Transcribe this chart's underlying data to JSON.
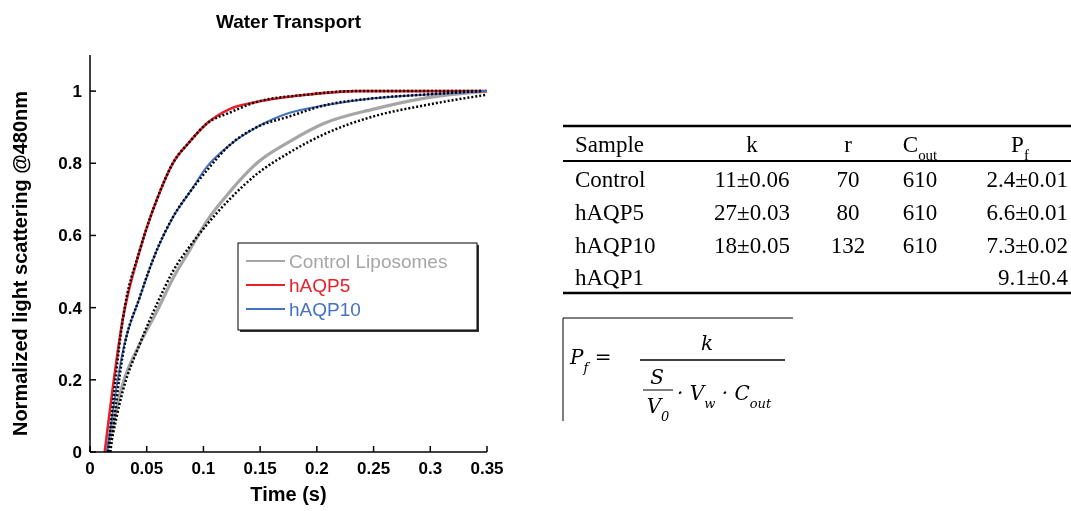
{
  "chart_data": [
    {
      "type": "line",
      "title": "Water Transport",
      "xlabel": "Time (s)",
      "ylabel": "Normalized light scattering @480nm",
      "xlim": [
        0,
        0.35
      ],
      "xticks": [
        0,
        0.05,
        0.1,
        0.15,
        0.2,
        0.25,
        0.3,
        0.35
      ],
      "ylim": [
        0,
        1.1
      ],
      "yticks": [
        0,
        0.2,
        0.4,
        0.6,
        0.8,
        1
      ],
      "grid": false,
      "legend": "right",
      "series": [
        {
          "name": "Control Liposomes",
          "color": "#a6a6a6",
          "line_style": "solid",
          "x": [
            0.015,
            0.029,
            0.044,
            0.059,
            0.073,
            0.088,
            0.103,
            0.123,
            0.147,
            0.176,
            0.206,
            0.25,
            0.294,
            0.35
          ],
          "values": [
            0,
            0.19,
            0.3,
            0.39,
            0.48,
            0.56,
            0.64,
            0.72,
            0.8,
            0.86,
            0.91,
            0.95,
            0.98,
            1.0
          ]
        },
        {
          "name": "hAQP5",
          "color": "#e8202a",
          "line_style": "solid",
          "x": [
            0.013,
            0.029,
            0.044,
            0.059,
            0.073,
            0.088,
            0.103,
            0.123,
            0.147,
            0.191,
            0.235,
            0.35
          ],
          "values": [
            0,
            0.37,
            0.56,
            0.7,
            0.8,
            0.86,
            0.91,
            0.95,
            0.97,
            0.99,
            1.0,
            1.0
          ]
        },
        {
          "name": "hAQP10",
          "color": "#4472c4",
          "line_style": "solid",
          "x": [
            0.015,
            0.029,
            0.044,
            0.059,
            0.073,
            0.088,
            0.103,
            0.123,
            0.147,
            0.176,
            0.206,
            0.25,
            0.294,
            0.35
          ],
          "values": [
            0,
            0.28,
            0.43,
            0.56,
            0.65,
            0.72,
            0.79,
            0.85,
            0.9,
            0.94,
            0.96,
            0.98,
            0.99,
            1.0
          ]
        },
        {
          "color": "#000000",
          "line_style": "dotted",
          "x": [
            0.017,
            0.029,
            0.044,
            0.059,
            0.073,
            0.088,
            0.103,
            0.123,
            0.147,
            0.176,
            0.206,
            0.25,
            0.294,
            0.35
          ],
          "values": [
            0,
            0.17,
            0.3,
            0.41,
            0.5,
            0.57,
            0.63,
            0.7,
            0.77,
            0.83,
            0.88,
            0.93,
            0.96,
            0.99
          ]
        },
        {
          "color": "#000000",
          "line_style": "dotted",
          "x": [
            0.016,
            0.029,
            0.044,
            0.059,
            0.073,
            0.088,
            0.103,
            0.123,
            0.147,
            0.191,
            0.235,
            0.345
          ],
          "values": [
            0,
            0.37,
            0.56,
            0.7,
            0.8,
            0.86,
            0.91,
            0.94,
            0.97,
            0.99,
            1.0,
            1.0
          ]
        },
        {
          "color": "#000000",
          "line_style": "dotted",
          "x": [
            0.018,
            0.029,
            0.044,
            0.059,
            0.073,
            0.088,
            0.103,
            0.123,
            0.147,
            0.176,
            0.206,
            0.25,
            0.294,
            0.345
          ],
          "values": [
            0,
            0.27,
            0.43,
            0.56,
            0.65,
            0.72,
            0.78,
            0.85,
            0.9,
            0.93,
            0.96,
            0.98,
            0.99,
            1.0
          ]
        }
      ]
    },
    {
      "type": "other",
      "categories": [
        "Sample",
        "k",
        "r",
        "C$_{out}$",
        "P$_{f}$"
      ],
      "y_categories": [
        "Control",
        "hAQP5",
        "hAQP10",
        "hAQP1"
      ],
      "cell_labels": [
        [
          "11±0.06",
          "70",
          "610",
          "2.4±0.01"
        ],
        [
          "27±0.03",
          "80",
          "610",
          "6.6±0.01"
        ],
        [
          "18±0.05",
          "132",
          "610",
          "7.3±0.02"
        ],
        [
          null,
          null,
          null,
          "9.1±0.4"
        ]
      ]
    },
    {
      "type": "other",
      "annotations": [
        "P$_{f}$ =",
        "k",
        "S",
        "V$_{0}$",
        "· V$_{w}$ · C$_{out}$"
      ]
    }
  ]
}
